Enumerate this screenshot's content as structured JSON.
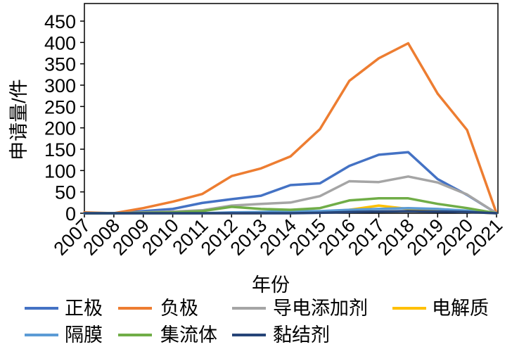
{
  "chart_data": {
    "type": "line",
    "title": "",
    "xlabel": "年份",
    "ylabel": "申请量/件",
    "x": [
      "2007",
      "2008",
      "2009",
      "2010",
      "2011",
      "2012",
      "2013",
      "2014",
      "2015",
      "2016",
      "2017",
      "2018",
      "2019",
      "2020",
      "2021"
    ],
    "ylim": [
      0,
      450
    ],
    "yticks": [
      0,
      50,
      100,
      150,
      200,
      250,
      300,
      350,
      400,
      450
    ],
    "grid": false,
    "legend_position": "bottom",
    "series": [
      {
        "name": "正极",
        "color": "#4472C4",
        "values": [
          0,
          0,
          5,
          10,
          24,
          33,
          41,
          66,
          70,
          111,
          137,
          143,
          80,
          43,
          0
        ]
      },
      {
        "name": "负极",
        "color": "#ED7D31",
        "values": [
          2,
          0,
          12,
          27,
          45,
          87,
          105,
          133,
          197,
          310,
          363,
          398,
          280,
          195,
          0
        ]
      },
      {
        "name": "导电添加剂",
        "color": "#A5A5A5",
        "values": [
          0,
          0,
          2,
          4,
          7,
          18,
          22,
          25,
          40,
          75,
          73,
          86,
          72,
          44,
          0
        ]
      },
      {
        "name": "电解质",
        "color": "#FFC000",
        "values": [
          0,
          0,
          0,
          0,
          0,
          0,
          0,
          2,
          3,
          8,
          18,
          10,
          5,
          3,
          0
        ]
      },
      {
        "name": "隔膜",
        "color": "#5B9BD5",
        "values": [
          0,
          0,
          0,
          0,
          0,
          2,
          3,
          5,
          5,
          8,
          10,
          12,
          10,
          6,
          0
        ]
      },
      {
        "name": "集流体",
        "color": "#70AD47",
        "values": [
          0,
          0,
          1,
          2,
          5,
          15,
          10,
          8,
          12,
          30,
          35,
          35,
          22,
          12,
          0
        ]
      },
      {
        "name": "黏结剂",
        "color": "#264478",
        "values": [
          0,
          0,
          0,
          0,
          0,
          0,
          0,
          0,
          1,
          3,
          4,
          5,
          4,
          3,
          0
        ]
      }
    ]
  }
}
